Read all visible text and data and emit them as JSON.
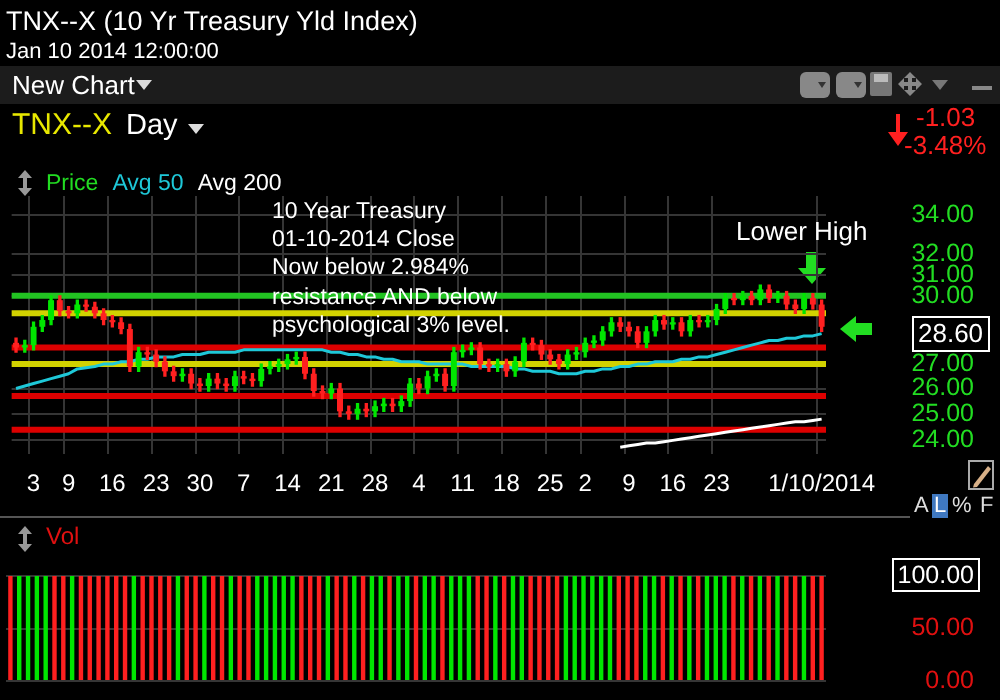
{
  "chart_data": [
    {
      "type": "candlestick",
      "title": "TNX--X (10 Yr Treasury Yld Index)",
      "subtitle": "Jan 10 2014 12:00:00",
      "categories": [
        null,
        null,
        "3",
        null,
        null,
        null,
        "9",
        null,
        null,
        null,
        null,
        "16",
        null,
        null,
        null,
        null,
        "23",
        null,
        null,
        null,
        null,
        "30",
        null,
        null,
        null,
        null,
        "7",
        null,
        null,
        null,
        null,
        "14",
        null,
        null,
        null,
        null,
        "21",
        null,
        null,
        null,
        null,
        "28",
        null,
        null,
        null,
        null,
        "4",
        null,
        null,
        null,
        null,
        "11",
        null,
        null,
        null,
        null,
        "18",
        null,
        null,
        null,
        null,
        "25",
        null,
        null,
        null,
        "2",
        null,
        null,
        null,
        null,
        "9",
        null,
        null,
        null,
        null,
        "16",
        null,
        null,
        null,
        null,
        "23",
        null,
        null,
        null,
        null,
        null,
        null,
        null,
        null,
        null,
        null,
        null,
        "1/10/2014"
      ],
      "series": [
        {
          "type": "candlestick",
          "name": "Price",
          "color": "#22dd22",
          "ohlc": [
            [
              27.9,
              28.1,
              27.5,
              27.7
            ],
            [
              27.7,
              28.0,
              27.5,
              27.8
            ],
            [
              27.8,
              28.8,
              27.6,
              28.6
            ],
            [
              28.6,
              29.1,
              28.4,
              28.9
            ],
            [
              28.9,
              30.0,
              28.7,
              29.8
            ],
            [
              29.8,
              30.0,
              29.1,
              29.3
            ],
            [
              29.3,
              29.5,
              29.0,
              29.2
            ],
            [
              29.2,
              29.8,
              29.0,
              29.6
            ],
            [
              29.6,
              29.8,
              29.3,
              29.5
            ],
            [
              29.5,
              29.7,
              29.0,
              29.2
            ],
            [
              29.2,
              29.4,
              28.7,
              28.9
            ],
            [
              28.9,
              29.1,
              28.6,
              28.8
            ],
            [
              28.8,
              29.0,
              28.3,
              28.5
            ],
            [
              28.5,
              28.7,
              26.7,
              26.9
            ],
            [
              26.9,
              27.7,
              26.7,
              27.5
            ],
            [
              27.5,
              27.7,
              27.2,
              27.4
            ],
            [
              27.4,
              27.6,
              26.9,
              27.1
            ],
            [
              27.1,
              27.3,
              26.5,
              26.7
            ],
            [
              26.7,
              26.9,
              26.3,
              26.5
            ],
            [
              26.5,
              26.8,
              26.3,
              26.6
            ],
            [
              26.6,
              26.8,
              26.0,
              26.2
            ],
            [
              26.2,
              26.4,
              25.9,
              26.1
            ],
            [
              26.1,
              26.6,
              25.9,
              26.4
            ],
            [
              26.4,
              26.6,
              26.0,
              26.2
            ],
            [
              26.2,
              26.4,
              25.9,
              26.1
            ],
            [
              26.1,
              26.7,
              25.9,
              26.5
            ],
            [
              26.5,
              26.7,
              26.2,
              26.4
            ],
            [
              26.4,
              26.6,
              26.1,
              26.3
            ],
            [
              26.3,
              27.0,
              26.1,
              26.8
            ],
            [
              26.8,
              27.1,
              26.6,
              26.9
            ],
            [
              26.9,
              27.2,
              26.7,
              27.0
            ],
            [
              27.0,
              27.4,
              26.8,
              27.2
            ],
            [
              27.2,
              27.5,
              27.0,
              27.3
            ],
            [
              27.3,
              27.5,
              26.4,
              26.6
            ],
            [
              26.6,
              26.8,
              25.7,
              25.9
            ],
            [
              25.9,
              26.1,
              25.6,
              25.8
            ],
            [
              25.8,
              26.2,
              25.6,
              26.0
            ],
            [
              26.0,
              26.2,
              24.9,
              25.1
            ],
            [
              25.1,
              25.3,
              24.8,
              25.0
            ],
            [
              25.0,
              25.4,
              24.8,
              25.2
            ],
            [
              25.2,
              25.4,
              24.9,
              25.1
            ],
            [
              25.1,
              25.5,
              24.9,
              25.3
            ],
            [
              25.3,
              25.6,
              25.1,
              25.4
            ],
            [
              25.4,
              25.6,
              25.1,
              25.3
            ],
            [
              25.3,
              25.7,
              25.1,
              25.5
            ],
            [
              25.5,
              26.4,
              25.3,
              26.2
            ],
            [
              26.2,
              26.4,
              25.8,
              26.0
            ],
            [
              26.0,
              26.7,
              25.8,
              26.5
            ],
            [
              26.5,
              26.8,
              26.3,
              26.6
            ],
            [
              26.6,
              26.8,
              25.9,
              26.1
            ],
            [
              26.1,
              27.7,
              25.9,
              27.5
            ],
            [
              27.5,
              27.8,
              27.3,
              27.6
            ],
            [
              27.6,
              27.9,
              27.4,
              27.7
            ],
            [
              27.7,
              27.9,
              26.8,
              27.0
            ],
            [
              27.0,
              27.2,
              26.7,
              26.9
            ],
            [
              26.9,
              27.2,
              26.7,
              27.0
            ],
            [
              27.0,
              27.2,
              26.5,
              26.7
            ],
            [
              26.7,
              27.3,
              26.5,
              27.1
            ],
            [
              27.1,
              28.1,
              26.9,
              27.9
            ],
            [
              27.9,
              28.1,
              27.6,
              27.8
            ],
            [
              27.8,
              28.0,
              27.2,
              27.4
            ],
            [
              27.4,
              27.6,
              27.0,
              27.2
            ],
            [
              27.2,
              27.4,
              26.8,
              27.0
            ],
            [
              27.0,
              27.6,
              26.8,
              27.4
            ],
            [
              27.4,
              27.7,
              27.2,
              27.5
            ],
            [
              27.5,
              28.1,
              27.3,
              27.9
            ],
            [
              27.9,
              28.2,
              27.7,
              28.0
            ],
            [
              28.0,
              28.6,
              27.8,
              28.4
            ],
            [
              28.4,
              29.0,
              28.2,
              28.8
            ],
            [
              28.8,
              29.0,
              28.4,
              28.6
            ],
            [
              28.6,
              28.8,
              28.2,
              28.4
            ],
            [
              28.4,
              28.6,
              27.7,
              27.9
            ],
            [
              27.9,
              28.6,
              27.7,
              28.4
            ],
            [
              28.4,
              29.1,
              28.2,
              28.9
            ],
            [
              28.9,
              29.1,
              28.5,
              28.7
            ],
            [
              28.7,
              29.0,
              28.5,
              28.8
            ],
            [
              28.8,
              29.0,
              28.2,
              28.4
            ],
            [
              28.4,
              29.1,
              28.2,
              28.9
            ],
            [
              28.9,
              29.1,
              28.6,
              28.8
            ],
            [
              28.8,
              29.1,
              28.6,
              28.9
            ],
            [
              28.9,
              29.6,
              28.7,
              29.4
            ],
            [
              29.4,
              30.1,
              29.2,
              29.9
            ],
            [
              29.9,
              30.1,
              29.6,
              29.8
            ],
            [
              29.8,
              30.2,
              29.6,
              30.0
            ],
            [
              30.0,
              30.2,
              29.6,
              29.8
            ],
            [
              29.8,
              30.5,
              29.6,
              30.3
            ],
            [
              30.3,
              30.5,
              29.7,
              29.9
            ],
            [
              29.9,
              30.2,
              29.7,
              30.0
            ],
            [
              30.0,
              30.2,
              29.4,
              29.6
            ],
            [
              29.6,
              29.8,
              29.2,
              29.4
            ],
            [
              29.4,
              30.1,
              29.2,
              29.9
            ],
            [
              29.9,
              30.1,
              29.4,
              29.6
            ],
            [
              29.6,
              29.8,
              28.4,
              28.6
            ]
          ],
          "colors": [
            "#ff2020",
            "#00e600",
            "#00e600",
            "#00e600",
            "#00e600",
            "#ff2020",
            "#ff2020",
            "#00e600",
            "#ff2020",
            "#ff2020",
            "#ff2020",
            "#ff2020",
            "#ff2020",
            "#ff2020",
            "#00e600",
            "#ff2020",
            "#ff2020",
            "#ff2020",
            "#ff2020",
            "#00e600",
            "#ff2020",
            "#ff2020",
            "#00e600",
            "#ff2020",
            "#ff2020",
            "#00e600",
            "#ff2020",
            "#ff2020",
            "#00e600",
            "#00e600",
            "#00e600",
            "#00e600",
            "#00e600",
            "#ff2020",
            "#ff2020",
            "#ff2020",
            "#00e600",
            "#ff2020",
            "#ff2020",
            "#00e600",
            "#ff2020",
            "#00e600",
            "#00e600",
            "#ff2020",
            "#00e600",
            "#00e600",
            "#ff2020",
            "#00e600",
            "#00e600",
            "#ff2020",
            "#00e600",
            "#00e600",
            "#00e600",
            "#ff2020",
            "#ff2020",
            "#00e600",
            "#ff2020",
            "#00e600",
            "#00e600",
            "#ff2020",
            "#ff2020",
            "#ff2020",
            "#ff2020",
            "#00e600",
            "#00e600",
            "#00e600",
            "#00e600",
            "#00e600",
            "#00e600",
            "#ff2020",
            "#ff2020",
            "#ff2020",
            "#00e600",
            "#00e600",
            "#ff2020",
            "#00e600",
            "#ff2020",
            "#00e600",
            "#ff2020",
            "#00e600",
            "#00e600",
            "#00e600",
            "#ff2020",
            "#00e600",
            "#ff2020",
            "#00e600",
            "#ff2020",
            "#00e600",
            "#ff2020",
            "#ff2020",
            "#00e600",
            "#ff2020",
            "#ff2020"
          ]
        },
        {
          "type": "line",
          "name": "Avg 50",
          "color": "#1ec8d8",
          "values": [
            26.0,
            26.1,
            26.2,
            26.3,
            26.4,
            26.5,
            26.6,
            26.8,
            26.85,
            26.9,
            27.0,
            27.0,
            27.1,
            27.1,
            27.2,
            27.2,
            27.3,
            27.3,
            27.3,
            27.4,
            27.4,
            27.4,
            27.5,
            27.5,
            27.5,
            27.5,
            27.6,
            27.6,
            27.6,
            27.6,
            27.6,
            27.6,
            27.6,
            27.6,
            27.6,
            27.6,
            27.5,
            27.5,
            27.4,
            27.4,
            27.3,
            27.3,
            27.2,
            27.2,
            27.1,
            27.1,
            27.1,
            27.0,
            27.0,
            27.0,
            27.0,
            27.0,
            26.9,
            26.9,
            26.9,
            26.9,
            26.9,
            26.8,
            26.8,
            26.7,
            26.7,
            26.7,
            26.6,
            26.6,
            26.6,
            26.7,
            26.7,
            26.8,
            26.8,
            26.9,
            26.9,
            27.0,
            27.0,
            27.1,
            27.1,
            27.1,
            27.2,
            27.2,
            27.3,
            27.3,
            27.4,
            27.5,
            27.6,
            27.7,
            27.8,
            27.9,
            28.0,
            28.0,
            28.1,
            28.1,
            28.2,
            28.2,
            28.3
          ]
        },
        {
          "type": "line",
          "name": "Avg 200",
          "color": "#ffffff",
          "values": [
            null,
            null,
            null,
            null,
            null,
            null,
            null,
            null,
            null,
            null,
            null,
            null,
            null,
            null,
            null,
            null,
            null,
            null,
            null,
            null,
            null,
            null,
            null,
            null,
            null,
            null,
            null,
            null,
            null,
            null,
            null,
            null,
            null,
            null,
            null,
            null,
            null,
            null,
            null,
            null,
            null,
            null,
            null,
            null,
            null,
            null,
            null,
            null,
            null,
            null,
            null,
            null,
            null,
            null,
            null,
            null,
            null,
            null,
            null,
            null,
            null,
            null,
            null,
            null,
            null,
            null,
            null,
            null,
            null,
            23.75,
            23.8,
            23.85,
            23.9,
            23.9,
            23.95,
            24.0,
            24.05,
            24.1,
            24.15,
            24.2,
            24.25,
            24.3,
            24.35,
            24.4,
            24.45,
            24.5,
            24.55,
            24.6,
            24.65,
            24.7,
            24.7,
            24.75,
            24.8
          ]
        }
      ],
      "ylim": [
        23.5,
        35
      ],
      "yticks": [
        {
          "value": 24,
          "label": "24.00"
        },
        {
          "value": 25,
          "label": "25.00"
        },
        {
          "value": 26,
          "label": "26.00"
        },
        {
          "value": 27,
          "label": "27.00"
        },
        {
          "value": 30,
          "label": "30.00"
        },
        {
          "value": 31,
          "label": "31.00"
        },
        {
          "value": 32,
          "label": "32.00"
        },
        {
          "value": 34,
          "label": "34.00"
        }
      ],
      "log": true,
      "grid": true,
      "legend": "top left",
      "ref_lines": [
        {
          "axis": "y",
          "value": 30.0,
          "color": "#22c322"
        },
        {
          "axis": "y",
          "value": 29.2,
          "color": "#d2d200"
        },
        {
          "axis": "y",
          "value": 27.7,
          "color": "#dd0000"
        },
        {
          "axis": "y",
          "value": 27.0,
          "color": "#d2d200"
        },
        {
          "axis": "y",
          "value": 25.7,
          "color": "#dd0000"
        },
        {
          "axis": "y",
          "value": 24.4,
          "color": "#dd0000"
        }
      ],
      "annotations": [
        "TNX--X",
        "Day",
        "New Chart",
        "-1.03",
        "-3.48%",
        "10 Year Treasury\n01-10-2014 Close\nNow below 2.984%\nresistance AND below\npsychological 3% level.",
        "Lower High",
        "28.60",
        "A",
        "L",
        "%",
        "F"
      ]
    },
    {
      "type": "bar",
      "title": "Vol",
      "categories": [
        null,
        null,
        null,
        null,
        null,
        null,
        null,
        null,
        null,
        null,
        null,
        null,
        null,
        null,
        null,
        null,
        null,
        null,
        null,
        null,
        null,
        null,
        null,
        null,
        null,
        null,
        null,
        null,
        null,
        null,
        null,
        null,
        null,
        null,
        null,
        null,
        null,
        null,
        null,
        null,
        null,
        null,
        null,
        null,
        null,
        null,
        null,
        null,
        null,
        null,
        null,
        null,
        null,
        null,
        null,
        null,
        null,
        null,
        null,
        null,
        null,
        null,
        null,
        null,
        null,
        null,
        null,
        null,
        null,
        null,
        null,
        null,
        null,
        null,
        null,
        null,
        null,
        null,
        null,
        null,
        null,
        null,
        null,
        null,
        null,
        null,
        null,
        null,
        null,
        null,
        null,
        null,
        null
      ],
      "values": [
        100,
        100,
        100,
        100,
        100,
        100,
        100,
        100,
        100,
        100,
        100,
        100,
        100,
        100,
        100,
        100,
        100,
        100,
        100,
        100,
        100,
        100,
        100,
        100,
        100,
        100,
        100,
        100,
        100,
        100,
        100,
        100,
        100,
        100,
        100,
        100,
        100,
        100,
        100,
        100,
        100,
        100,
        100,
        100,
        100,
        100,
        100,
        100,
        100,
        100,
        100,
        100,
        100,
        100,
        100,
        100,
        100,
        100,
        100,
        100,
        100,
        100,
        100,
        100,
        100,
        100,
        100,
        100,
        100,
        100,
        100,
        100,
        100,
        100,
        100,
        100,
        100,
        100,
        100,
        100,
        100,
        100,
        100,
        100,
        100,
        100,
        100,
        100,
        100,
        100,
        100,
        100,
        100
      ],
      "colors": [
        "#ff2020",
        "#00e600",
        "#00e600",
        "#00e600",
        "#00e600",
        "#ff2020",
        "#ff2020",
        "#00e600",
        "#ff2020",
        "#ff2020",
        "#ff2020",
        "#ff2020",
        "#ff2020",
        "#ff2020",
        "#00e600",
        "#ff2020",
        "#ff2020",
        "#ff2020",
        "#ff2020",
        "#00e600",
        "#ff2020",
        "#ff2020",
        "#00e600",
        "#ff2020",
        "#ff2020",
        "#00e600",
        "#ff2020",
        "#ff2020",
        "#00e600",
        "#00e600",
        "#00e600",
        "#00e600",
        "#00e600",
        "#ff2020",
        "#ff2020",
        "#ff2020",
        "#00e600",
        "#ff2020",
        "#ff2020",
        "#00e600",
        "#ff2020",
        "#00e600",
        "#00e600",
        "#ff2020",
        "#00e600",
        "#00e600",
        "#ff2020",
        "#00e600",
        "#00e600",
        "#ff2020",
        "#00e600",
        "#00e600",
        "#00e600",
        "#ff2020",
        "#ff2020",
        "#00e600",
        "#ff2020",
        "#00e600",
        "#00e600",
        "#ff2020",
        "#ff2020",
        "#ff2020",
        "#ff2020",
        "#00e600",
        "#00e600",
        "#00e600",
        "#00e600",
        "#00e600",
        "#00e600",
        "#ff2020",
        "#ff2020",
        "#ff2020",
        "#00e600",
        "#00e600",
        "#ff2020",
        "#00e600",
        "#ff2020",
        "#00e600",
        "#ff2020",
        "#00e600",
        "#00e600",
        "#00e600",
        "#ff2020",
        "#00e600",
        "#ff2020",
        "#00e600",
        "#ff2020",
        "#00e600",
        "#ff2020",
        "#ff2020",
        "#00e600",
        "#ff2020",
        "#ff2020"
      ],
      "ylim": [
        0,
        100
      ],
      "yticks": [
        {
          "value": 0,
          "label": "0.00"
        },
        {
          "value": 50,
          "label": "50.00"
        },
        {
          "value": 100,
          "label": "100.00"
        }
      ],
      "grid": "y",
      "tick_labels": "y"
    }
  ]
}
